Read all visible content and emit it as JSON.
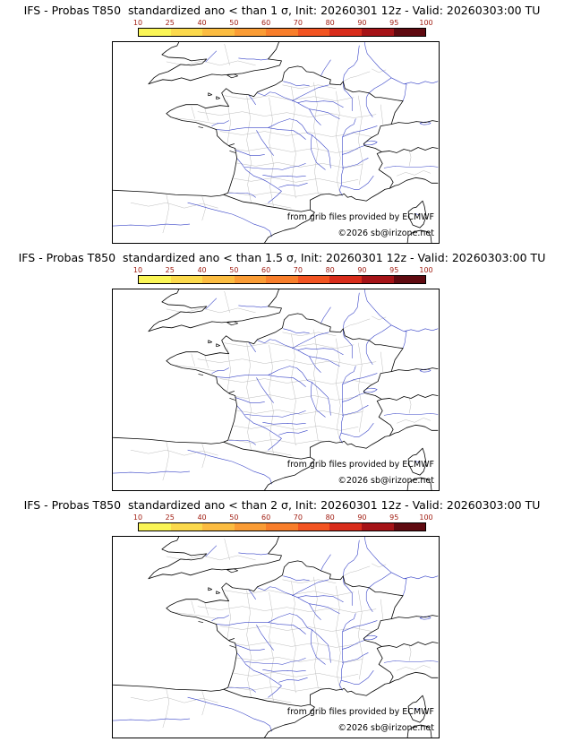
{
  "panels": [
    {
      "title": "IFS - Probas T850  standardized ano < than 1 σ, Init: 20260301 12z - Valid: 20260303:00 TU"
    },
    {
      "title": "IFS - Probas T850  standardized ano < than 1.5 σ, Init: 20260301 12z - Valid: 20260303:00 TU"
    },
    {
      "title": "IFS - Probas T850  standardized ano < than 2 σ, Init: 20260301 12z - Valid: 20260303:00 TU"
    }
  ],
  "colorbar": {
    "tick_labels": [
      "10",
      "25",
      "40",
      "50",
      "60",
      "70",
      "80",
      "90",
      "95",
      "100"
    ],
    "segment_colors": [
      "#faf556",
      "#fbd94c",
      "#fbbc41",
      "#fa9c35",
      "#f87e2b",
      "#f25422",
      "#d82c1b",
      "#a51317",
      "#5f0a10"
    ],
    "tick_color": "#a22015",
    "border_color": "#000000"
  },
  "map": {
    "credit": "from grib files provided by ECMWF",
    "copyright": "©2026 sb@irizone.net",
    "coast_color": "#000000",
    "river_color": "#3a46c8",
    "boundary_color": "#bdbdbd"
  }
}
